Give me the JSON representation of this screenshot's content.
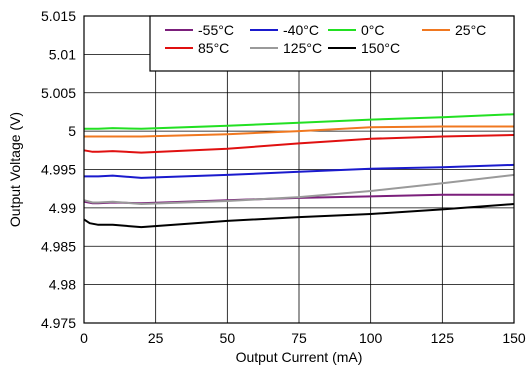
{
  "chart_data": {
    "type": "line",
    "title": "",
    "xlabel": "Output Current (mA)",
    "ylabel": "Output Voltage (V)",
    "xlim": [
      0,
      150
    ],
    "ylim": [
      4.975,
      5.015
    ],
    "x_ticks": [
      0,
      25,
      50,
      75,
      100,
      125,
      150
    ],
    "x_tick_labels": [
      "0",
      "25",
      "50",
      "75",
      "100",
      "125",
      "150"
    ],
    "y_ticks": [
      4.975,
      4.98,
      4.985,
      4.99,
      4.995,
      5.0,
      5.005,
      5.01,
      5.015
    ],
    "y_tick_labels": [
      "4.975",
      "4.98",
      "4.985",
      "4.99",
      "4.995",
      "5",
      "5.005",
      "5.01",
      "5.015"
    ],
    "grid": true,
    "legend_position": "top-right",
    "series": [
      {
        "name": "-55°C",
        "color": "#7b1f7b",
        "x": [
          0,
          3,
          5,
          10,
          20,
          50,
          75,
          100,
          125,
          150
        ],
        "y": [
          4.9908,
          4.9906,
          4.9906,
          4.9907,
          4.9906,
          4.991,
          4.9913,
          4.9915,
          4.9917,
          4.9917
        ]
      },
      {
        "name": "-40°C",
        "color": "#1a1acd",
        "x": [
          0,
          3,
          5,
          10,
          20,
          50,
          75,
          100,
          125,
          150
        ],
        "y": [
          4.9941,
          4.9941,
          4.9941,
          4.9942,
          4.9939,
          4.9943,
          4.9947,
          4.9951,
          4.9953,
          4.9956
        ]
      },
      {
        "name": "0°C",
        "color": "#22e022",
        "x": [
          0,
          3,
          5,
          10,
          20,
          50,
          75,
          100,
          125,
          150
        ],
        "y": [
          5.0003,
          5.0003,
          5.0003,
          5.0004,
          5.0003,
          5.0007,
          5.0011,
          5.0015,
          5.0018,
          5.0022
        ]
      },
      {
        "name": "25°C",
        "color": "#f07820",
        "x": [
          0,
          3,
          5,
          10,
          20,
          50,
          75,
          100,
          125,
          150
        ],
        "y": [
          4.9993,
          4.9993,
          4.9993,
          4.9993,
          4.9993,
          4.9996,
          5.0,
          5.0005,
          5.0006,
          5.0006
        ]
      },
      {
        "name": "85°C",
        "color": "#e01010",
        "x": [
          0,
          3,
          5,
          10,
          20,
          50,
          75,
          100,
          125,
          150
        ],
        "y": [
          4.9975,
          4.9973,
          4.9973,
          4.9974,
          4.9972,
          4.9977,
          4.9984,
          4.999,
          4.9993,
          4.9995
        ]
      },
      {
        "name": "125°C",
        "color": "#9a9a9a",
        "x": [
          0,
          3,
          5,
          10,
          20,
          50,
          75,
          100,
          125,
          150
        ],
        "y": [
          4.991,
          4.9907,
          4.9907,
          4.9908,
          4.9905,
          4.9909,
          4.9914,
          4.9922,
          4.9932,
          4.9943
        ]
      },
      {
        "name": "150°C",
        "color": "#000000",
        "x": [
          0,
          2,
          5,
          10,
          20,
          50,
          75,
          100,
          125,
          150
        ],
        "y": [
          4.9885,
          4.988,
          4.9878,
          4.9878,
          4.9875,
          4.9883,
          4.9888,
          4.9892,
          4.9898,
          4.9905
        ]
      }
    ]
  }
}
